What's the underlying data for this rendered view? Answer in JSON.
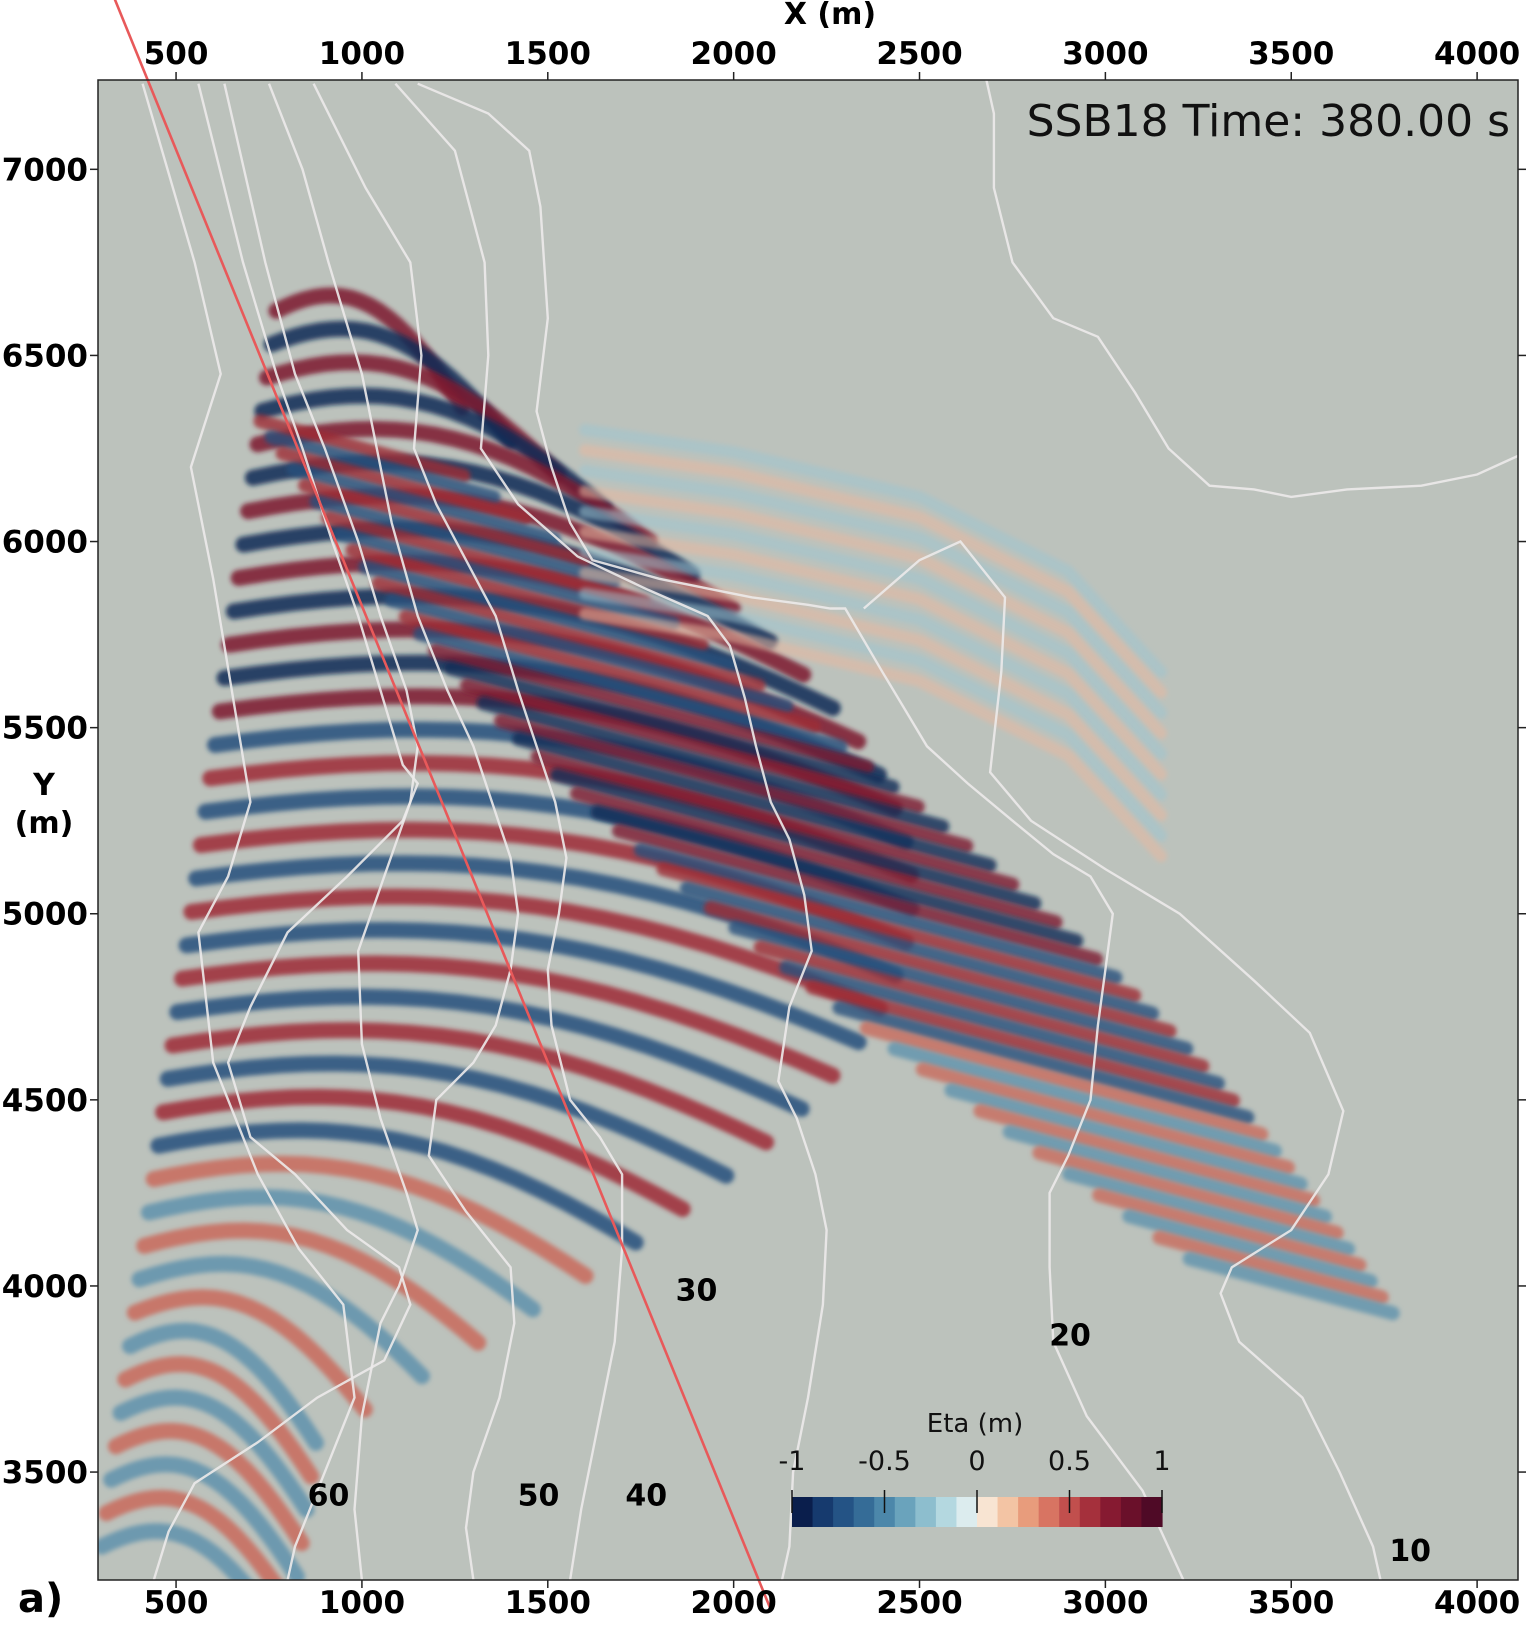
{
  "panel_label": "a)",
  "chart_data": {
    "type": "heatmap",
    "title": "SSB18 Time: 380.00 s",
    "xlabel": "X (m)",
    "ylabel_line1": "Y",
    "ylabel_line2": "(m)",
    "xlim": [
      290,
      4110
    ],
    "ylim": [
      3210,
      7240
    ],
    "x_ticks": [
      500,
      1000,
      1500,
      2000,
      2500,
      3000,
      3500,
      4000
    ],
    "x_tick_labels": [
      "500",
      "1000",
      "1500",
      "2000",
      "2500",
      "3000",
      "3500",
      "4000"
    ],
    "y_ticks": [
      3500,
      4000,
      4500,
      5000,
      5500,
      6000,
      6500,
      7000
    ],
    "y_tick_labels": [
      "3500",
      "4000",
      "4500",
      "5000",
      "5500",
      "6000",
      "6500",
      "7000"
    ],
    "background_color": "#bcc2bc",
    "colorbar": {
      "title": "Eta (m)",
      "range": [
        -1,
        1
      ],
      "ticks": [
        -1,
        -0.5,
        0,
        0.5,
        1
      ],
      "tick_labels": [
        "-1",
        "-0.5",
        "0",
        "0.5",
        "1"
      ],
      "colors": [
        "#0a1e4c",
        "#163a6e",
        "#245385",
        "#356c97",
        "#4c87aa",
        "#6aa3bc",
        "#8dbece",
        "#b4d8e0",
        "#dcecee",
        "#f8e4d2",
        "#f3c4a4",
        "#e89c7c",
        "#d87462",
        "#c14f4d",
        "#a5303c",
        "#861a31",
        "#6a102a",
        "#4f0a26"
      ]
    },
    "depth_contours": [
      {
        "label": "60",
        "label_pos": [
          910,
          3440
        ],
        "points": [
          [
            410,
            7230
          ],
          [
            550,
            6750
          ],
          [
            620,
            6450
          ],
          [
            540,
            6200
          ],
          [
            600,
            5900
          ],
          [
            650,
            5600
          ],
          [
            700,
            5300
          ],
          [
            640,
            5100
          ],
          [
            560,
            4950
          ],
          [
            600,
            4600
          ],
          [
            720,
            4300
          ],
          [
            830,
            4100
          ],
          [
            950,
            3950
          ],
          [
            980,
            3700
          ],
          [
            900,
            3500
          ],
          [
            820,
            3300
          ],
          [
            800,
            3210
          ]
        ]
      },
      {
        "label": "50",
        "label_pos": [
          1475,
          3440
        ],
        "points": [
          [
            560,
            7230
          ],
          [
            680,
            6750
          ],
          [
            770,
            6450
          ],
          [
            840,
            6250
          ],
          [
            920,
            6000
          ],
          [
            990,
            5800
          ],
          [
            1050,
            5600
          ],
          [
            1110,
            5400
          ],
          [
            1150,
            5350
          ],
          [
            1110,
            5250
          ],
          [
            960,
            5100
          ],
          [
            800,
            4950
          ],
          [
            700,
            4750
          ],
          [
            640,
            4600
          ],
          [
            700,
            4400
          ],
          [
            820,
            4300
          ],
          [
            960,
            4150
          ],
          [
            1100,
            4050
          ],
          [
            1130,
            3950
          ],
          [
            1060,
            3800
          ],
          [
            880,
            3700
          ],
          [
            720,
            3580
          ],
          [
            550,
            3470
          ],
          [
            480,
            3340
          ],
          [
            440,
            3210
          ]
        ]
      },
      {
        "label": "40",
        "label_pos": [
          1765,
          3440
        ],
        "points": [
          [
            630,
            7230
          ],
          [
            740,
            6750
          ],
          [
            820,
            6450
          ],
          [
            900,
            6250
          ],
          [
            990,
            6000
          ],
          [
            1050,
            5800
          ],
          [
            1120,
            5600
          ],
          [
            1150,
            5450
          ],
          [
            1130,
            5300
          ],
          [
            1060,
            5100
          ],
          [
            990,
            4900
          ],
          [
            1000,
            4650
          ],
          [
            1050,
            4450
          ],
          [
            1120,
            4250
          ],
          [
            1150,
            4150
          ],
          [
            1100,
            4000
          ],
          [
            1050,
            3900
          ],
          [
            1000,
            3650
          ],
          [
            980,
            3400
          ],
          [
            1000,
            3210
          ]
        ]
      },
      {
        "label": "30",
        "label_pos": [
          1900,
          3990
        ],
        "points": [
          [
            750,
            7230
          ],
          [
            840,
            7000
          ],
          [
            910,
            6750
          ],
          [
            1000,
            6450
          ],
          [
            1040,
            6250
          ],
          [
            1080,
            6050
          ],
          [
            1150,
            5800
          ],
          [
            1230,
            5600
          ],
          [
            1300,
            5450
          ],
          [
            1350,
            5300
          ],
          [
            1400,
            5150
          ],
          [
            1420,
            5000
          ],
          [
            1400,
            4850
          ],
          [
            1360,
            4700
          ],
          [
            1300,
            4600
          ],
          [
            1200,
            4500
          ],
          [
            1180,
            4350
          ],
          [
            1280,
            4200
          ],
          [
            1400,
            4050
          ],
          [
            1410,
            3900
          ],
          [
            1370,
            3700
          ],
          [
            1300,
            3500
          ],
          [
            1280,
            3350
          ],
          [
            1300,
            3210
          ]
        ]
      },
      {
        "label": "20",
        "label_pos": [
          2905,
          3870
        ],
        "points": [
          [
            870,
            7230
          ],
          [
            1010,
            6950
          ],
          [
            1130,
            6750
          ],
          [
            1160,
            6500
          ],
          [
            1140,
            6250
          ],
          [
            1200,
            6100
          ],
          [
            1280,
            5950
          ],
          [
            1360,
            5800
          ],
          [
            1420,
            5600
          ],
          [
            1470,
            5450
          ],
          [
            1520,
            5300
          ],
          [
            1550,
            5150
          ],
          [
            1530,
            5000
          ],
          [
            1500,
            4850
          ],
          [
            1510,
            4700
          ],
          [
            1560,
            4500
          ],
          [
            1640,
            4400
          ],
          [
            1700,
            4300
          ],
          [
            1700,
            4100
          ],
          [
            1680,
            3850
          ],
          [
            1630,
            3600
          ],
          [
            1590,
            3400
          ],
          [
            1560,
            3210
          ]
        ]
      },
      {
        "label": "",
        "label_pos": null,
        "points": [
          [
            1090,
            7230
          ],
          [
            1250,
            7050
          ],
          [
            1330,
            6750
          ],
          [
            1340,
            6500
          ],
          [
            1320,
            6250
          ],
          [
            1420,
            6100
          ],
          [
            1580,
            5960
          ],
          [
            1770,
            5870
          ],
          [
            1930,
            5800
          ],
          [
            1990,
            5720
          ],
          [
            2030,
            5580
          ],
          [
            2060,
            5450
          ],
          [
            2100,
            5300
          ],
          [
            2150,
            5200
          ],
          [
            2190,
            5050
          ],
          [
            2210,
            4900
          ],
          [
            2150,
            4750
          ],
          [
            2120,
            4550
          ],
          [
            2170,
            4450
          ],
          [
            2220,
            4300
          ],
          [
            2250,
            4150
          ],
          [
            2240,
            3950
          ],
          [
            2200,
            3700
          ],
          [
            2160,
            3500
          ],
          [
            2150,
            3300
          ],
          [
            2130,
            3210
          ]
        ]
      },
      {
        "label": "",
        "label_pos": null,
        "points": [
          [
            1150,
            7230
          ],
          [
            1340,
            7150
          ],
          [
            1450,
            7050
          ],
          [
            1480,
            6900
          ],
          [
            1490,
            6750
          ],
          [
            1500,
            6600
          ],
          [
            1470,
            6350
          ],
          [
            1510,
            6200
          ],
          [
            1560,
            6050
          ],
          [
            1620,
            5950
          ],
          [
            1800,
            5900
          ],
          [
            2050,
            5850
          ],
          [
            2200,
            5830
          ],
          [
            2260,
            5820
          ],
          [
            2300,
            5820
          ],
          [
            2400,
            5650
          ],
          [
            2520,
            5450
          ],
          [
            2630,
            5350
          ],
          [
            2750,
            5250
          ],
          [
            2860,
            5160
          ],
          [
            2960,
            5100
          ],
          [
            3020,
            5000
          ],
          [
            3000,
            4850
          ],
          [
            2980,
            4700
          ],
          [
            2960,
            4500
          ],
          [
            2900,
            4350
          ],
          [
            2850,
            4250
          ],
          [
            2850,
            4050
          ],
          [
            2860,
            3850
          ],
          [
            2950,
            3650
          ],
          [
            3100,
            3450
          ],
          [
            3210,
            3210
          ]
        ]
      },
      {
        "label": "",
        "label_pos": null,
        "points": [
          [
            2350,
            5820
          ],
          [
            2500,
            5950
          ],
          [
            2610,
            6000
          ],
          [
            2730,
            5850
          ],
          [
            2720,
            5650
          ],
          [
            2690,
            5380
          ],
          [
            2800,
            5250
          ],
          [
            3000,
            5120
          ],
          [
            3200,
            5000
          ],
          [
            3400,
            4820
          ],
          [
            3550,
            4680
          ],
          [
            3640,
            4470
          ],
          [
            3600,
            4300
          ],
          [
            3500,
            4150
          ],
          [
            3340,
            4050
          ],
          [
            3310,
            3980
          ],
          [
            3360,
            3850
          ],
          [
            3530,
            3700
          ],
          [
            3630,
            3500
          ],
          [
            3720,
            3300
          ],
          [
            3740,
            3210
          ]
        ]
      },
      {
        "label": "10",
        "label_pos": [
          3820,
          3290
        ],
        "points": [
          [
            2680,
            7240
          ],
          [
            2700,
            7150
          ],
          [
            2700,
            6950
          ],
          [
            2750,
            6750
          ],
          [
            2860,
            6600
          ],
          [
            2980,
            6550
          ],
          [
            3080,
            6400
          ],
          [
            3170,
            6250
          ],
          [
            3280,
            6150
          ],
          [
            3400,
            6140
          ],
          [
            3500,
            6120
          ],
          [
            3650,
            6140
          ],
          [
            3850,
            6150
          ],
          [
            4000,
            6180
          ],
          [
            4110,
            6230
          ]
        ]
      }
    ],
    "transect_line": {
      "color": "#e8595a",
      "points": [
        [
          285,
          7580
        ],
        [
          2100,
          3130
        ]
      ]
    }
  }
}
